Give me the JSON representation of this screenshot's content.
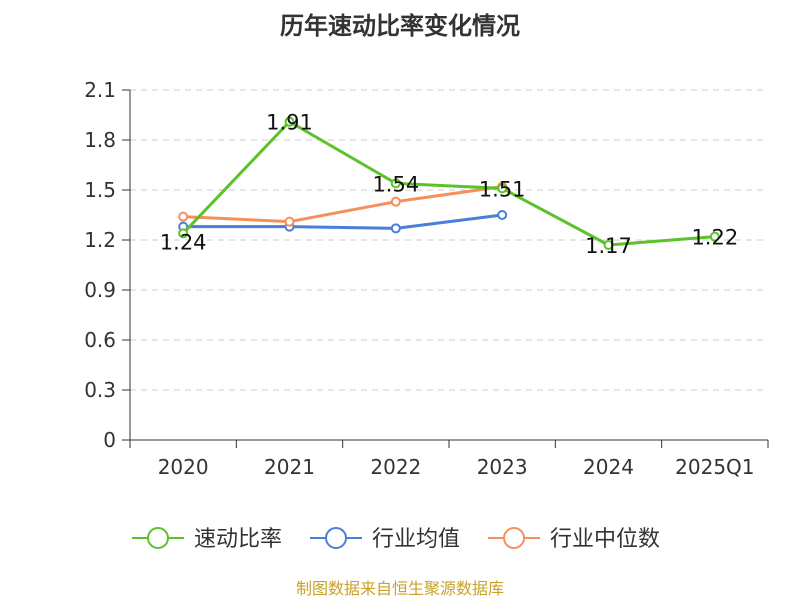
{
  "chart_data": {
    "type": "line",
    "title": "历年速动比率变化情况",
    "categories": [
      "2020",
      "2021",
      "2022",
      "2023",
      "2024",
      "2025Q1"
    ],
    "ylim": [
      0,
      2.1
    ],
    "yticks": [
      "0",
      "0.3",
      "0.6",
      "0.9",
      "1.2",
      "1.5",
      "1.8",
      "2.1"
    ],
    "grid": true,
    "legend_position": "bottom",
    "series": [
      {
        "name": "速动比率",
        "color": "#5cc22a",
        "values": [
          1.24,
          1.91,
          1.54,
          1.51,
          1.17,
          1.22
        ],
        "labels": [
          "1.24",
          "1.91",
          "1.54",
          "1.51",
          "1.17",
          "1.22"
        ]
      },
      {
        "name": "行业均值",
        "color": "#4a7fd8",
        "values": [
          1.28,
          1.28,
          1.27,
          1.35,
          null,
          null
        ]
      },
      {
        "name": "行业中位数",
        "color": "#f5905a",
        "values": [
          1.34,
          1.31,
          1.43,
          1.52,
          null,
          null
        ]
      }
    ],
    "source": "制图数据来自恒生聚源数据库"
  }
}
